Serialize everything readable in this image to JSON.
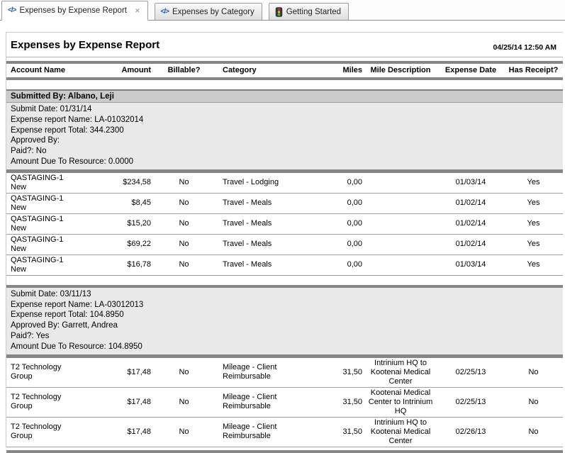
{
  "tabs": [
    {
      "label": "Expenses by Expense Report",
      "icon": "code-icon",
      "active": true,
      "closable": true,
      "close_glyph": "✕"
    },
    {
      "label": "Expenses by Category",
      "icon": "code-icon",
      "active": false,
      "closable": false
    },
    {
      "label": "Getting Started",
      "icon": "traffic-light-icon",
      "active": false,
      "closable": false
    }
  ],
  "report": {
    "title": "Expenses by Expense Report",
    "timestamp": "04/25/14 12:50 AM",
    "columns": [
      "Account Name",
      "Amount",
      "Billable?",
      "Category",
      "Miles",
      "Mile Description",
      "Expense Date",
      "Has Receipt?"
    ],
    "groups": [
      {
        "submitted_by": "Submitted By: Albano, Leji",
        "info": [
          "Submit Date: 01/31/14",
          "Expense report Name: LA-01032014",
          "Expense report Total: 344.2300",
          "Approved By:",
          "Paid?: No",
          "Amount Due To Resource: 0.0000"
        ],
        "rows": [
          {
            "account": "QASTAGING-1\nNew",
            "amount": "$234,58",
            "billable": "No",
            "category": "Travel - Lodging",
            "miles": "0,00",
            "mile_description": "",
            "expense_date": "01/03/14",
            "has_receipt": "Yes"
          },
          {
            "account": "QASTAGING-1\nNew",
            "amount": "$8,45",
            "billable": "No",
            "category": "Travel - Meals",
            "miles": "0,00",
            "mile_description": "",
            "expense_date": "01/02/14",
            "has_receipt": "Yes"
          },
          {
            "account": "QASTAGING-1\nNew",
            "amount": "$15,20",
            "billable": "No",
            "category": "Travel - Meals",
            "miles": "0,00",
            "mile_description": "",
            "expense_date": "01/02/14",
            "has_receipt": "Yes"
          },
          {
            "account": "QASTAGING-1\nNew",
            "amount": "$69,22",
            "billable": "No",
            "category": "Travel - Meals",
            "miles": "0,00",
            "mile_description": "",
            "expense_date": "01/02/14",
            "has_receipt": "Yes"
          },
          {
            "account": "QASTAGING-1\nNew",
            "amount": "$16,78",
            "billable": "No",
            "category": "Travel - Meals",
            "miles": "0,00",
            "mile_description": "",
            "expense_date": "01/03/14",
            "has_receipt": "Yes"
          }
        ]
      },
      {
        "submitted_by": null,
        "info": [
          "Submit Date: 03/11/13",
          "Expense report Name: LA-03012013",
          "Expense report Total: 104.8950",
          "Approved By: Garrett, Andrea",
          "Paid?: Yes",
          "Amount Due To Resource: 104.8950"
        ],
        "rows": [
          {
            "account": "T2 Technology\nGroup",
            "amount": "$17,48",
            "billable": "No",
            "category": "Mileage - Client Reimbursable",
            "miles": "31,50",
            "mile_description": "Intrinium HQ to Kootenai Medical Center",
            "expense_date": "02/25/13",
            "has_receipt": "No"
          },
          {
            "account": "T2 Technology\nGroup",
            "amount": "$17,48",
            "billable": "No",
            "category": "Mileage - Client Reimbursable",
            "miles": "31,50",
            "mile_description": "Kootenai Medical Center to Intrinium HQ",
            "expense_date": "02/25/13",
            "has_receipt": "No"
          },
          {
            "account": "T2 Technology\nGroup",
            "amount": "$17,48",
            "billable": "No",
            "category": "Mileage - Client Reimbursable",
            "miles": "31,50",
            "mile_description": "Intrinium HQ to Kootenai Medical Center",
            "expense_date": "02/26/13",
            "has_receipt": "No"
          }
        ]
      }
    ]
  },
  "colors": {
    "section_bar": "#868686",
    "group_header_bg": "#cbcbcb",
    "group_info_bg": "#e9e9e9",
    "row_separator": "#9e9e9e",
    "code_icon_blue": "#2257c5",
    "traffic_green": "#44bb44",
    "traffic_red": "#cc3333",
    "traffic_yellow": "#ddcc33"
  }
}
